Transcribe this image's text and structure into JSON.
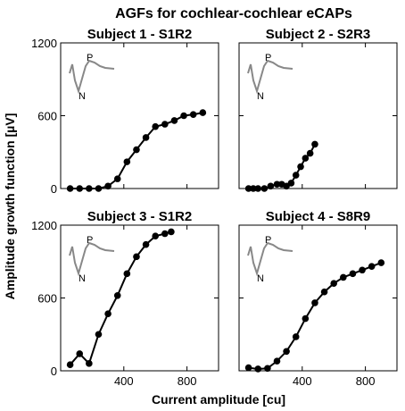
{
  "chart_data": {
    "type": "line",
    "title": "AGFs for cochlear-cochlear eCAPs",
    "xlabel": "Current amplitude [cu]",
    "ylabel": "Amplitude growth function [µV]",
    "xlim": [
      0,
      1000
    ],
    "ylim": [
      0,
      1200
    ],
    "xticks": [
      "400",
      "800"
    ],
    "yticks": [
      "0",
      "600",
      "1200"
    ],
    "grid": false,
    "inset_labels": {
      "peak": "P",
      "trough": "N"
    },
    "panels": [
      {
        "title": "Subject 1 - S1R2",
        "x": [
          60,
          120,
          180,
          240,
          300,
          360,
          420,
          480,
          540,
          600,
          660,
          720,
          780,
          840,
          900
        ],
        "y": [
          0,
          0,
          0,
          0,
          20,
          80,
          220,
          320,
          420,
          510,
          530,
          560,
          600,
          610,
          625
        ]
      },
      {
        "title": "Subject 2 - S2R3",
        "x": [
          60,
          90,
          120,
          160,
          200,
          240,
          270,
          300,
          330,
          360,
          390,
          420,
          450,
          480
        ],
        "y": [
          0,
          0,
          0,
          0,
          20,
          35,
          35,
          20,
          45,
          110,
          180,
          250,
          290,
          365
        ]
      },
      {
        "title": "Subject 3 - S1R2",
        "x": [
          60,
          120,
          180,
          240,
          300,
          360,
          420,
          480,
          540,
          600,
          660,
          700
        ],
        "y": [
          50,
          140,
          60,
          300,
          470,
          620,
          800,
          940,
          1040,
          1110,
          1130,
          1145
        ]
      },
      {
        "title": "Subject 4 - S8R9",
        "x": [
          60,
          120,
          180,
          240,
          300,
          360,
          420,
          480,
          540,
          600,
          660,
          720,
          780,
          840,
          900
        ],
        "y": [
          25,
          15,
          20,
          80,
          160,
          280,
          430,
          560,
          650,
          720,
          770,
          800,
          830,
          860,
          890
        ]
      }
    ]
  }
}
